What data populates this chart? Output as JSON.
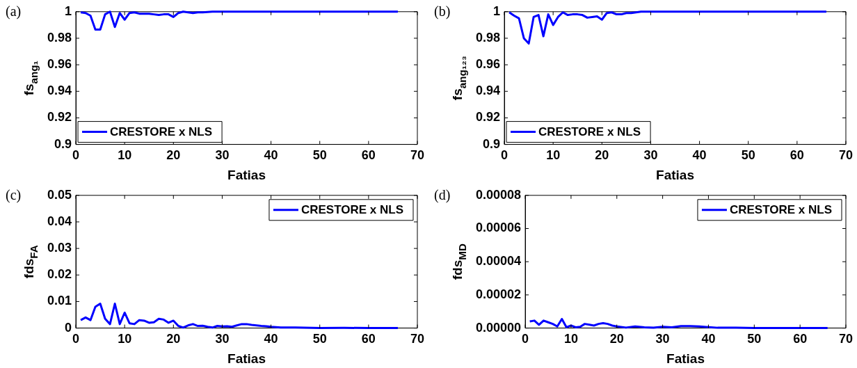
{
  "chart_data": [
    {
      "type": "line",
      "ylabel": "fs$_{ang₁}$",
      "xlabel": "Fatias",
      "annotations": [
        "(a)"
      ],
      "legend": "bottom left",
      "xlim": [
        0,
        70
      ],
      "xticks": [
        0,
        10,
        20,
        30,
        40,
        50,
        60,
        70
      ],
      "ylim": [
        0.9,
        1
      ],
      "yticks": [
        0.9,
        0.92,
        0.94,
        0.96,
        0.98,
        1
      ],
      "series": [
        {
          "name": "CRESTORE x NLS",
          "color": "#0000ff",
          "x": [
            1,
            2,
            3,
            4,
            5,
            6,
            7,
            8,
            9,
            10,
            11,
            12,
            13,
            14,
            15,
            16,
            17,
            18,
            19,
            20,
            21,
            22,
            23,
            24,
            25,
            26,
            27,
            28,
            30,
            35,
            40,
            45,
            50,
            55,
            60,
            66
          ],
          "values": [
            0.9995,
            0.999,
            0.997,
            0.9865,
            0.9865,
            0.998,
            1.0,
            0.9885,
            0.999,
            0.994,
            0.999,
            0.9995,
            0.9985,
            0.9985,
            0.9985,
            0.998,
            0.9975,
            0.998,
            0.998,
            0.996,
            0.999,
            1.0,
            0.9995,
            0.999,
            0.9995,
            0.9995,
            0.9998,
            1.0,
            1.0,
            1.0,
            1.0,
            1.0,
            1.0,
            1.0,
            1.0,
            1.0
          ]
        }
      ]
    },
    {
      "type": "line",
      "ylabel": "fs$_{ang₁₂₃}$",
      "xlabel": "Fatias",
      "annotations": [
        "(b)"
      ],
      "legend": "bottom left",
      "xlim": [
        0,
        70
      ],
      "xticks": [
        0,
        10,
        20,
        30,
        40,
        50,
        60,
        70
      ],
      "ylim": [
        0.9,
        1
      ],
      "yticks": [
        0.9,
        0.92,
        0.94,
        0.96,
        0.98,
        1
      ],
      "series": [
        {
          "name": "CRESTORE x NLS",
          "color": "#0000ff",
          "x": [
            1,
            2,
            3,
            4,
            5,
            6,
            7,
            8,
            9,
            10,
            11,
            12,
            13,
            14,
            15,
            16,
            17,
            18,
            19,
            20,
            21,
            22,
            23,
            24,
            25,
            26,
            27,
            28,
            30,
            35,
            40,
            45,
            50,
            55,
            60,
            66
          ],
          "values": [
            0.9995,
            0.997,
            0.995,
            0.98,
            0.976,
            0.996,
            0.9975,
            0.9815,
            0.998,
            0.99,
            0.996,
            0.9995,
            0.9975,
            0.998,
            0.998,
            0.9975,
            0.9955,
            0.996,
            0.9965,
            0.994,
            0.999,
            0.9995,
            0.998,
            0.998,
            0.999,
            0.999,
            0.9995,
            1.0,
            1.0,
            1.0,
            1.0,
            1.0,
            1.0,
            1.0,
            1.0,
            1.0
          ]
        }
      ]
    },
    {
      "type": "line",
      "ylabel": "fds$_{FA}$",
      "xlabel": "Fatias",
      "annotations": [
        "(c)"
      ],
      "legend": "top right",
      "xlim": [
        0,
        70
      ],
      "xticks": [
        0,
        10,
        20,
        30,
        40,
        50,
        60,
        70
      ],
      "ylim": [
        0,
        0.05
      ],
      "yticks": [
        0,
        0.01,
        0.02,
        0.03,
        0.04,
        0.05
      ],
      "series": [
        {
          "name": "CRESTORE x NLS",
          "color": "#0000ff",
          "x": [
            1,
            2,
            3,
            4,
            5,
            6,
            7,
            8,
            9,
            10,
            11,
            12,
            13,
            14,
            15,
            16,
            17,
            18,
            19,
            20,
            21,
            22,
            23,
            24,
            25,
            26,
            27,
            28,
            29,
            30,
            31,
            32,
            33,
            34,
            35,
            36,
            37,
            38,
            39,
            40,
            42,
            45,
            50,
            55,
            60,
            66
          ],
          "values": [
            0.003,
            0.004,
            0.003,
            0.008,
            0.0092,
            0.0035,
            0.0015,
            0.0092,
            0.0015,
            0.0058,
            0.0018,
            0.0015,
            0.003,
            0.0028,
            0.002,
            0.0022,
            0.0035,
            0.0032,
            0.002,
            0.0028,
            0.0008,
            0.0002,
            0.001,
            0.0015,
            0.0008,
            0.0009,
            0.0005,
            0.0002,
            0.0008,
            0.0006,
            0.0007,
            0.0005,
            0.001,
            0.0015,
            0.0015,
            0.0012,
            0.001,
            0.0008,
            0.0007,
            0.0005,
            0.0002,
            0.0002,
            0,
            0.0001,
            0,
            0
          ]
        }
      ]
    },
    {
      "type": "line",
      "ylabel": "fds$_{MD}$",
      "xlabel": "Fatias",
      "annotations": [
        "(d)"
      ],
      "legend": "top right",
      "xlim": [
        0,
        70
      ],
      "xticks": [
        0,
        10,
        20,
        30,
        40,
        50,
        60,
        70
      ],
      "ylim": [
        0,
        8e-05
      ],
      "yticks": [
        {
          "value": 0,
          "label": "0.00000"
        },
        {
          "value": 2e-05,
          "label": "0.00002"
        },
        {
          "value": 4e-05,
          "label": "0.00004"
        },
        {
          "value": 6e-05,
          "label": "0.00006"
        },
        {
          "value": 8e-05,
          "label": "0.00008"
        }
      ],
      "series": [
        {
          "name": "CRESTORE x NLS",
          "color": "#0000ff",
          "x": [
            1,
            2,
            3,
            4,
            5,
            6,
            7,
            8,
            9,
            10,
            11,
            12,
            13,
            14,
            15,
            16,
            17,
            18,
            19,
            20,
            22,
            24,
            26,
            28,
            30,
            32,
            34,
            36,
            38,
            40,
            42,
            46,
            50,
            60,
            66
          ],
          "values": [
            4e-06,
            4.5e-06,
            2e-06,
            4.5e-06,
            3.5e-06,
            2.5e-06,
            1e-06,
            5.5e-06,
            5e-07,
            1.5e-06,
            5e-07,
            8e-07,
            2.5e-06,
            2e-06,
            1.5e-06,
            2.5e-06,
            3e-06,
            2.5e-06,
            1.5e-06,
            1e-06,
            3e-07,
            1e-06,
            5e-07,
            3e-07,
            8e-07,
            5e-07,
            1.2e-06,
            1.2e-06,
            1e-06,
            6e-07,
            2e-07,
            3e-07,
            0,
            0,
            0
          ]
        }
      ]
    }
  ]
}
